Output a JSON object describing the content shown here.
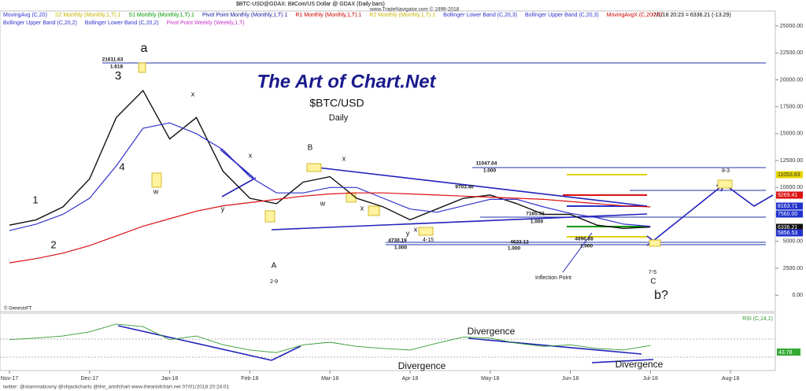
{
  "chart_data": {
    "type": "line",
    "header": "$BTC-USD@GDAX: BitCoin/US Dollar @ GDAX (Daily bars)",
    "source": "www.TradeNavigator.com © 1999-2018",
    "status": "7/1/18 20:23 = 6336.21 (-13.29)",
    "footer": "twitter: @stammabosny @shjackcharts @the_artofchart   www.theartofchart.net   07/01/2018 20:24:01",
    "legend_items": [
      {
        "name": "MovingAvg (C,20)",
        "color": "#3333cc"
      },
      {
        "name": "S2 Monthly (Monthly,1,T).1",
        "color": "#c8b400"
      },
      {
        "name": "S1 Monthly (Monthly,1,T).1",
        "color": "#009900"
      },
      {
        "name": "Pivot Point Monthly (Monthly,1,T).1",
        "color": "#1a1aa0"
      },
      {
        "name": "R1 Monthly (Monthly,1,T).1",
        "color": "#cc0000"
      },
      {
        "name": "R2 Monthly (Monthly,1,T).1",
        "color": "#c8b400"
      },
      {
        "name": "Bollinger Lower Band (C,20,3)",
        "color": "#3333cc"
      },
      {
        "name": "Bollinger Upper Band (C,20,3)",
        "color": "#3333cc"
      },
      {
        "name": "MovingAvgX (C,200,F)",
        "color": "#cc0000"
      },
      {
        "name": "Bollinger Upper Band (C,20,2)",
        "color": "#3333cc"
      },
      {
        "name": "Bollinger Lower Band (C,20,2)",
        "color": "#3333cc"
      },
      {
        "name": "Pivot Point Weekly (Weekly,1,T)",
        "color": "#cc33cc"
      }
    ],
    "categories": [
      "Nov-17",
      null,
      null,
      "Dec-17",
      null,
      null,
      "Jan-18",
      null,
      null,
      "Feb-18",
      null,
      null,
      "Mar-18",
      null,
      null,
      "Apr-18",
      null,
      null,
      "May-18",
      null,
      null,
      "Jun-18",
      null,
      null,
      "Jul-18",
      null,
      null,
      "Aug-18"
    ],
    "series": [
      {
        "name": "Price",
        "color": "#111111",
        "values": [
          6500,
          7000,
          8200,
          10800,
          16500,
          19000,
          14500,
          16500,
          11500,
          9000,
          8500,
          10500,
          11000,
          9000,
          8200,
          7000,
          8000,
          9000,
          9300,
          8500,
          7500,
          7500,
          6500,
          6200,
          6336.21,
          null,
          null,
          null
        ]
      },
      {
        "name": "MovingAvg (C,20)",
        "color": "#3333cc",
        "values": [
          6000,
          6600,
          7500,
          9000,
          12000,
          15500,
          16000,
          15000,
          13500,
          11000,
          9500,
          9500,
          10000,
          10000,
          9000,
          8000,
          7700,
          8300,
          8900,
          8900,
          8200,
          7600,
          7200,
          6600,
          6400,
          null,
          null,
          null
        ]
      },
      {
        "name": "MovingAvgX (C,200,F)",
        "color": "#dd1111",
        "values": [
          3000,
          3400,
          3900,
          4600,
          5500,
          6400,
          7100,
          7800,
          8300,
          8600,
          8900,
          9200,
          9400,
          9500,
          9500,
          9400,
          9300,
          9200,
          9100,
          9000,
          8900,
          8700,
          8500,
          8300,
          8200,
          null,
          null,
          null
        ]
      }
    ],
    "ylim": [
      -1300,
      25950
    ],
    "yticks": [
      {
        "value": 0,
        "label": "0.00"
      },
      {
        "value": 2500,
        "label": "2500.00"
      },
      {
        "value": 5000,
        "label": "5000.00"
      },
      {
        "value": 7500,
        "label": "7500.00"
      },
      {
        "value": 10000,
        "label": "10000.00"
      },
      {
        "value": 12500,
        "label": "12500.00"
      },
      {
        "value": 15000,
        "label": "15000.00"
      },
      {
        "value": 17500,
        "label": "17500.00"
      },
      {
        "value": 20000,
        "label": "20000.00"
      },
      {
        "value": 22500,
        "label": "22500.00"
      },
      {
        "value": 25000,
        "label": "25000.00"
      }
    ],
    "price_tags": [
      {
        "label": "11053.83",
        "color": "#e8d800"
      },
      {
        "label": "9269.41",
        "color": "#dd1111"
      },
      {
        "label": "8163.71",
        "color": "#2233cc"
      },
      {
        "label": "7560.00",
        "color": "#2233cc"
      },
      {
        "label": "6336.21",
        "color": "#111111"
      },
      {
        "label": "5856.53",
        "color": "#2233cc"
      }
    ],
    "rsi": {
      "name": "RSI (C,14,1)",
      "color": "#339933",
      "values": [
        55,
        58,
        62,
        70,
        85,
        80,
        55,
        62,
        45,
        35,
        30,
        45,
        50,
        42,
        38,
        35,
        48,
        60,
        58,
        48,
        42,
        45,
        38,
        35,
        43.78,
        null,
        null,
        null
      ],
      "value_label": "43.78",
      "ylim": [
        0,
        100
      ]
    },
    "annotations": [
      "The Art of Chart.Net",
      "$BTC/USD",
      "Daily",
      "a",
      "3",
      "4",
      "1",
      "2",
      "A",
      "2-9",
      "B",
      "x",
      "x",
      "x",
      "x",
      "x",
      "w",
      "w",
      "y",
      "y",
      "21611.63",
      "1.618",
      "11047.04",
      "1.000",
      "9703.40",
      "7165.33",
      "1.000",
      "4730.19",
      "1.000",
      "4623.12",
      "1.000",
      "4896.88",
      "1.000",
      "4-15",
      "Inflection Point",
      "7-5",
      "C",
      "b?",
      "8-3",
      "Divergence",
      "Divergence",
      "Divergence",
      "© GenesisFT"
    ]
  }
}
